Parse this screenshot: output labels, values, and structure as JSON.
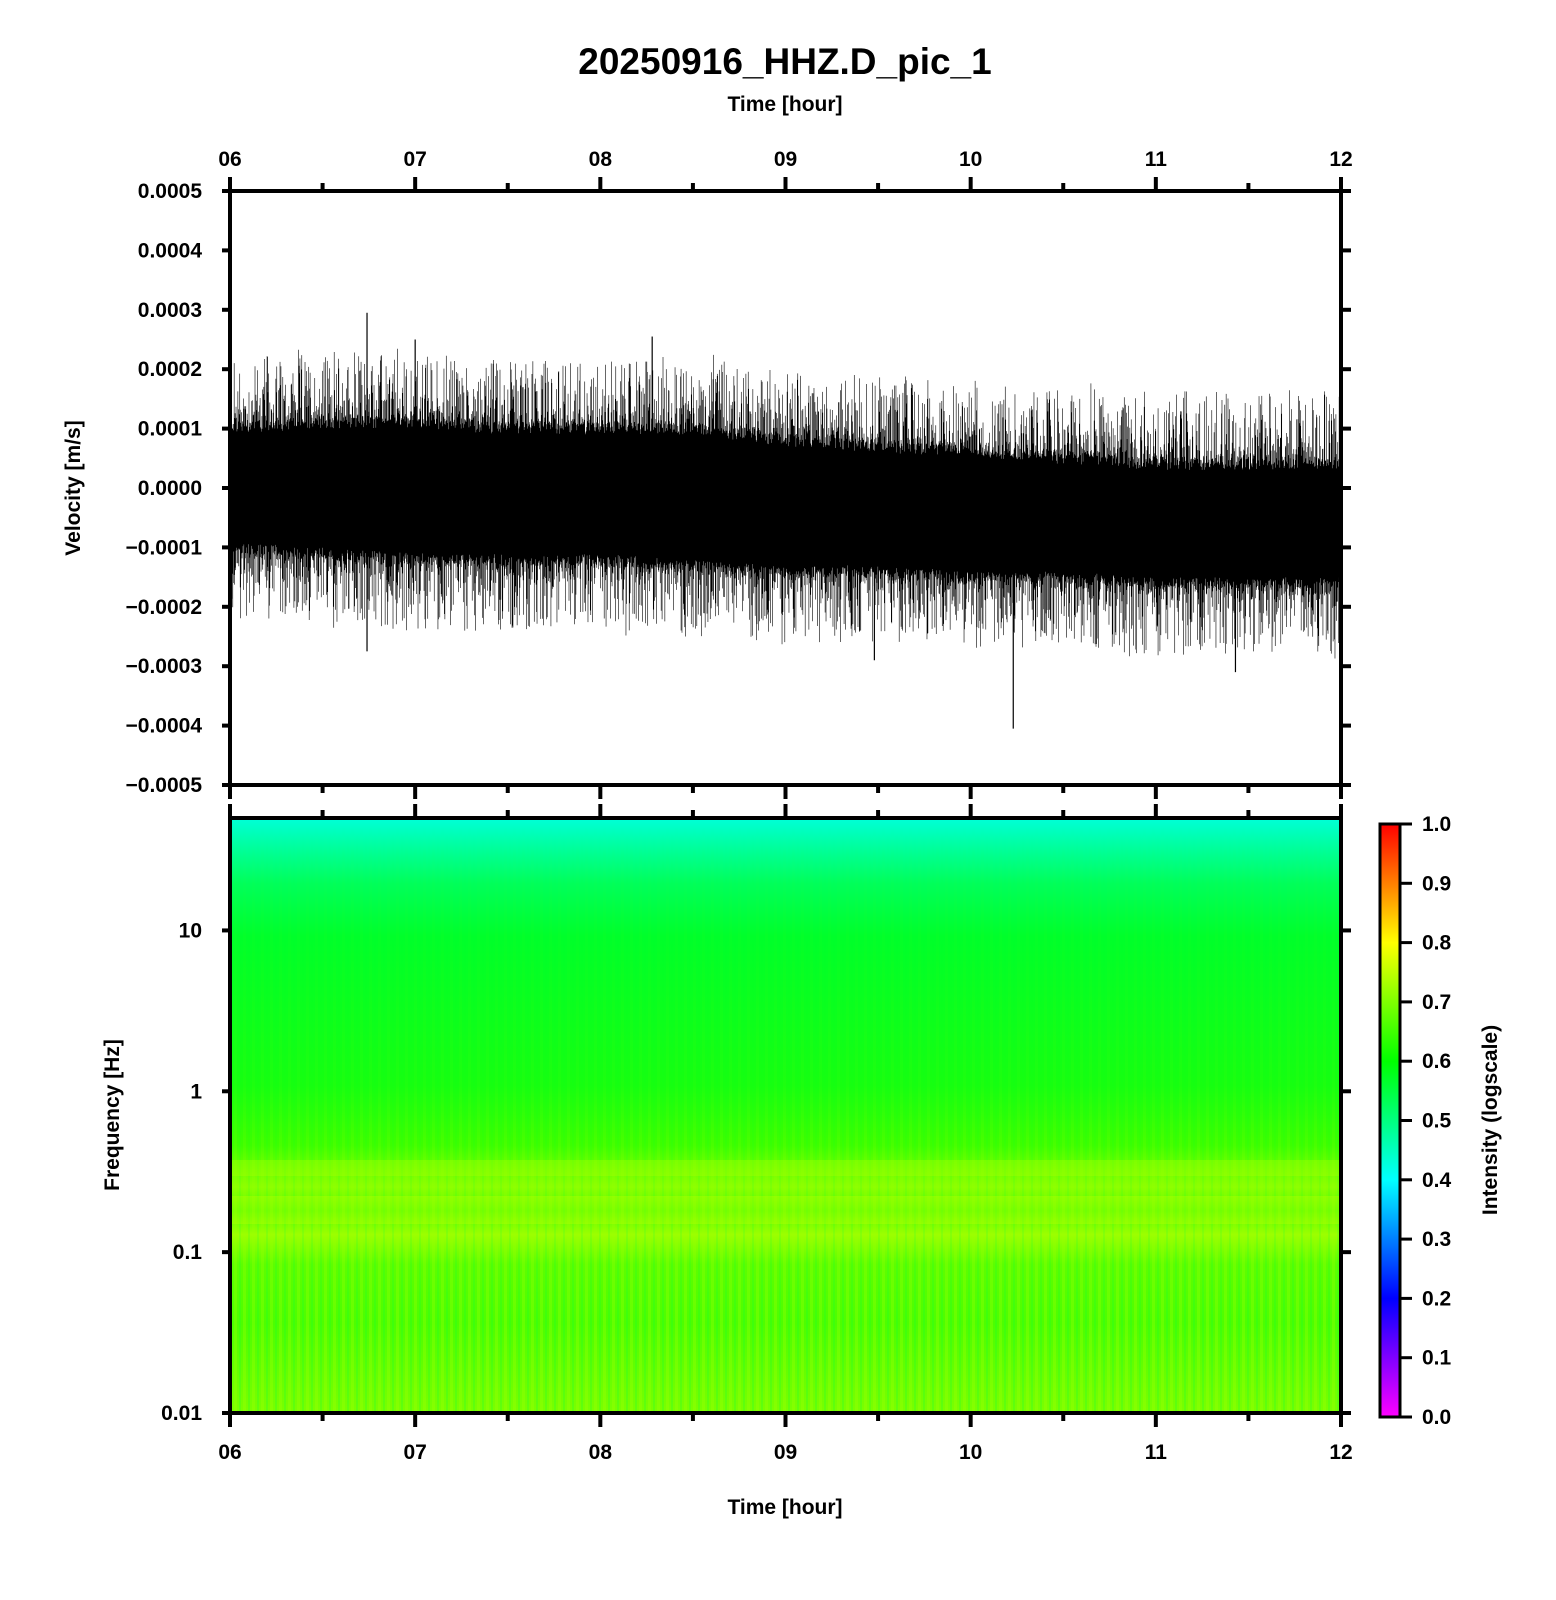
{
  "chart_data": [
    {
      "type": "line",
      "title": "20250916_HHZ.D_pic_1",
      "xlabel_top": "Time [hour]",
      "ylabel": "Velocity [m/s]",
      "x_tick_labels": [
        "06",
        "07",
        "08",
        "09",
        "10",
        "11",
        "12"
      ],
      "xlim": [
        6,
        12
      ],
      "y_tick_labels": [
        "0.0005",
        "0.0004",
        "0.0003",
        "0.0002",
        "0.0001",
        "0.0000",
        "−0.0001",
        "−0.0002",
        "−0.0003",
        "−0.0004",
        "−0.0005"
      ],
      "ylim": [
        -0.0005,
        0.0005
      ],
      "series": [
        {
          "color": "#000000",
          "band_upper_x": [
            6.0,
            6.5,
            7.0,
            7.5,
            8.0,
            8.5,
            9.0,
            9.5,
            10.0,
            10.5,
            11.0,
            11.5,
            12.0
          ],
          "band_upper_y": [
            9e-05,
            0.0001,
            0.0001,
            9e-05,
            9e-05,
            9e-05,
            7e-05,
            6e-05,
            5e-05,
            4e-05,
            3e-05,
            3e-05,
            3e-05
          ],
          "band_lower_y": [
            -9e-05,
            -0.0001,
            -0.00011,
            -0.00011,
            -0.00011,
            -0.00012,
            -0.00013,
            -0.00013,
            -0.00014,
            -0.00014,
            -0.00015,
            -0.00015,
            -0.00015
          ],
          "peaks": [
            {
              "x": 6.74,
              "y": 0.000295
            },
            {
              "x": 8.28,
              "y": 0.000255
            },
            {
              "x": 7.0,
              "y": 0.00025
            },
            {
              "x": 6.74,
              "y": -0.000275
            },
            {
              "x": 10.23,
              "y": -0.000405
            },
            {
              "x": 11.43,
              "y": -0.00031
            },
            {
              "x": 9.48,
              "y": -0.00029
            }
          ]
        }
      ]
    },
    {
      "type": "heatmap",
      "xlabel": "Time [hour]",
      "ylabel": "Frequency [Hz]",
      "x_tick_labels": [
        "06",
        "07",
        "08",
        "09",
        "10",
        "11",
        "12"
      ],
      "xlim": [
        6,
        12
      ],
      "y_scale": "log",
      "y_tick_labels": [
        "10",
        "1",
        "0.1",
        "0.01"
      ],
      "ylim": [
        0.01,
        50
      ],
      "intensity_profile": {
        "frequency_hz": [
          50,
          30,
          15,
          5,
          1,
          0.5,
          0.4,
          0.3,
          0.2,
          0.1,
          0.03,
          0.01
        ],
        "intensity": [
          0.45,
          0.52,
          0.6,
          0.61,
          0.63,
          0.65,
          0.68,
          0.66,
          0.69,
          0.65,
          0.66,
          0.68
        ]
      },
      "colorbar": {
        "label": "Intensity (logscale)",
        "tick_labels": [
          "1.0",
          "0.9",
          "0.8",
          "0.7",
          "0.6",
          "0.5",
          "0.4",
          "0.3",
          "0.2",
          "0.1",
          "0.0"
        ],
        "range": [
          0,
          1
        ],
        "colors": [
          "#ff00ff",
          "#0000ff",
          "#00ffff",
          "#00ff00",
          "#ffff00",
          "#ff0000"
        ]
      }
    }
  ]
}
